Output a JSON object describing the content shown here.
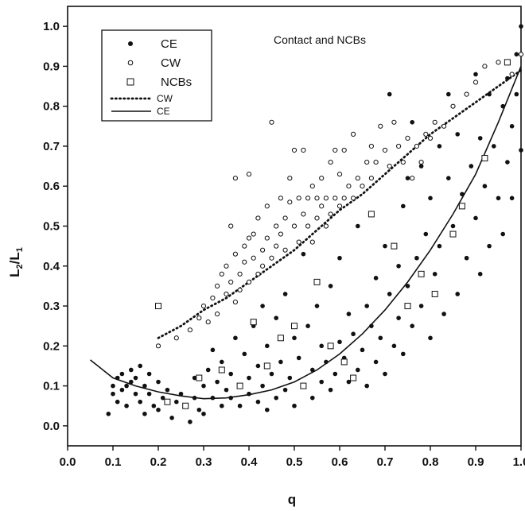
{
  "chart_data": {
    "type": "scatter",
    "title": "",
    "annotation": "Contact and NCBs",
    "xlabel": "q",
    "ylabel_main": "L",
    "ylabel_sub1": "2",
    "ylabel_slash": "/L",
    "ylabel_sub2": "1",
    "xlim": [
      0.0,
      1.0
    ],
    "ylim": [
      -0.05,
      1.05
    ],
    "xticks": [
      0.0,
      0.1,
      0.2,
      0.3,
      0.4,
      0.5,
      0.6,
      0.7,
      0.8,
      0.9,
      1.0
    ],
    "yticks": [
      0.0,
      0.1,
      0.2,
      0.3,
      0.4,
      0.5,
      0.6,
      0.7,
      0.8,
      0.9,
      1.0
    ],
    "xtick_labels": [
      "0.0",
      "0.1",
      "0.2",
      "0.3",
      "0.4",
      "0.5",
      "0.6",
      "0.7",
      "0.8",
      "0.9",
      "1.0"
    ],
    "ytick_labels": [
      "0.0",
      "0.1",
      "0.2",
      "0.3",
      "0.4",
      "0.5",
      "0.6",
      "0.7",
      "0.8",
      "0.9",
      "1.0"
    ],
    "grid": false,
    "legend_position": "top-left",
    "legend": [
      {
        "label": "CE",
        "marker": "filled-circle"
      },
      {
        "label": "CW",
        "marker": "open-circle"
      },
      {
        "label": "NCBs",
        "marker": "open-square"
      },
      {
        "label": "CW",
        "marker": "dotted-line"
      },
      {
        "label": "CE",
        "marker": "solid-line"
      }
    ],
    "series": [
      {
        "name": "CE",
        "marker": "filled-circle",
        "points": [
          [
            0.09,
            0.03
          ],
          [
            0.1,
            0.1
          ],
          [
            0.1,
            0.08
          ],
          [
            0.11,
            0.12
          ],
          [
            0.11,
            0.06
          ],
          [
            0.12,
            0.13
          ],
          [
            0.12,
            0.09
          ],
          [
            0.13,
            0.1
          ],
          [
            0.13,
            0.05
          ],
          [
            0.14,
            0.14
          ],
          [
            0.14,
            0.11
          ],
          [
            0.15,
            0.08
          ],
          [
            0.15,
            0.12
          ],
          [
            0.16,
            0.15
          ],
          [
            0.16,
            0.06
          ],
          [
            0.17,
            0.1
          ],
          [
            0.17,
            0.03
          ],
          [
            0.18,
            0.13
          ],
          [
            0.18,
            0.08
          ],
          [
            0.19,
            0.05
          ],
          [
            0.2,
            0.11
          ],
          [
            0.2,
            0.04
          ],
          [
            0.21,
            0.07
          ],
          [
            0.22,
            0.09
          ],
          [
            0.23,
            0.02
          ],
          [
            0.24,
            0.06
          ],
          [
            0.25,
            0.08
          ],
          [
            0.26,
            0.05
          ],
          [
            0.27,
            0.01
          ],
          [
            0.28,
            0.07
          ],
          [
            0.28,
            0.12
          ],
          [
            0.29,
            0.04
          ],
          [
            0.3,
            0.1
          ],
          [
            0.3,
            0.03
          ],
          [
            0.31,
            0.14
          ],
          [
            0.32,
            0.07
          ],
          [
            0.32,
            0.19
          ],
          [
            0.33,
            0.11
          ],
          [
            0.34,
            0.05
          ],
          [
            0.34,
            0.16
          ],
          [
            0.35,
            0.09
          ],
          [
            0.36,
            0.13
          ],
          [
            0.36,
            0.07
          ],
          [
            0.37,
            0.22
          ],
          [
            0.38,
            0.1
          ],
          [
            0.38,
            0.05
          ],
          [
            0.39,
            0.18
          ],
          [
            0.4,
            0.12
          ],
          [
            0.4,
            0.08
          ],
          [
            0.41,
            0.25
          ],
          [
            0.42,
            0.06
          ],
          [
            0.42,
            0.15
          ],
          [
            0.43,
            0.1
          ],
          [
            0.43,
            0.3
          ],
          [
            0.44,
            0.04
          ],
          [
            0.44,
            0.2
          ],
          [
            0.45,
            0.13
          ],
          [
            0.46,
            0.07
          ],
          [
            0.46,
            0.27
          ],
          [
            0.47,
            0.16
          ],
          [
            0.48,
            0.09
          ],
          [
            0.48,
            0.33
          ],
          [
            0.49,
            0.12
          ],
          [
            0.5,
            0.05
          ],
          [
            0.5,
            0.22
          ],
          [
            0.51,
            0.17
          ],
          [
            0.52,
            0.1
          ],
          [
            0.52,
            0.43
          ],
          [
            0.53,
            0.25
          ],
          [
            0.54,
            0.14
          ],
          [
            0.54,
            0.07
          ],
          [
            0.55,
            0.3
          ],
          [
            0.56,
            0.11
          ],
          [
            0.56,
            0.2
          ],
          [
            0.57,
            0.16
          ],
          [
            0.58,
            0.09
          ],
          [
            0.58,
            0.35
          ],
          [
            0.59,
            0.13
          ],
          [
            0.6,
            0.21
          ],
          [
            0.6,
            0.42
          ],
          [
            0.61,
            0.17
          ],
          [
            0.62,
            0.11
          ],
          [
            0.62,
            0.28
          ],
          [
            0.63,
            0.23
          ],
          [
            0.64,
            0.14
          ],
          [
            0.64,
            0.5
          ],
          [
            0.65,
            0.19
          ],
          [
            0.66,
            0.3
          ],
          [
            0.66,
            0.1
          ],
          [
            0.67,
            0.25
          ],
          [
            0.68,
            0.37
          ],
          [
            0.68,
            0.16
          ],
          [
            0.69,
            0.22
          ],
          [
            0.7,
            0.45
          ],
          [
            0.7,
            0.13
          ],
          [
            0.71,
            0.33
          ],
          [
            0.71,
            0.83
          ],
          [
            0.72,
            0.2
          ],
          [
            0.73,
            0.4
          ],
          [
            0.73,
            0.27
          ],
          [
            0.74,
            0.18
          ],
          [
            0.74,
            0.55
          ],
          [
            0.75,
            0.35
          ],
          [
            0.75,
            0.62
          ],
          [
            0.76,
            0.25
          ],
          [
            0.76,
            0.76
          ],
          [
            0.77,
            0.42
          ],
          [
            0.78,
            0.3
          ],
          [
            0.78,
            0.65
          ],
          [
            0.79,
            0.48
          ],
          [
            0.8,
            0.22
          ],
          [
            0.8,
            0.57
          ],
          [
            0.81,
            0.38
          ],
          [
            0.82,
            0.7
          ],
          [
            0.82,
            0.45
          ],
          [
            0.83,
            0.28
          ],
          [
            0.84,
            0.62
          ],
          [
            0.84,
            0.83
          ],
          [
            0.85,
            0.5
          ],
          [
            0.86,
            0.33
          ],
          [
            0.86,
            0.73
          ],
          [
            0.87,
            0.58
          ],
          [
            0.88,
            0.42
          ],
          [
            0.88,
            0.83
          ],
          [
            0.89,
            0.65
          ],
          [
            0.9,
            0.52
          ],
          [
            0.9,
            0.88
          ],
          [
            0.91,
            0.38
          ],
          [
            0.91,
            0.72
          ],
          [
            0.92,
            0.6
          ],
          [
            0.93,
            0.83
          ],
          [
            0.93,
            0.45
          ],
          [
            0.94,
            0.7
          ],
          [
            0.95,
            0.57
          ],
          [
            0.95,
            0.91
          ],
          [
            0.96,
            0.8
          ],
          [
            0.96,
            0.48
          ],
          [
            0.97,
            0.66
          ],
          [
            0.97,
            0.87
          ],
          [
            0.98,
            0.75
          ],
          [
            0.98,
            0.57
          ],
          [
            0.99,
            0.83
          ],
          [
            0.99,
            0.93
          ],
          [
            1.0,
            0.69
          ],
          [
            1.0,
            1.0
          ]
        ]
      },
      {
        "name": "CW",
        "marker": "open-circle",
        "points": [
          [
            0.2,
            0.2
          ],
          [
            0.24,
            0.22
          ],
          [
            0.27,
            0.24
          ],
          [
            0.29,
            0.27
          ],
          [
            0.3,
            0.3
          ],
          [
            0.31,
            0.26
          ],
          [
            0.32,
            0.32
          ],
          [
            0.33,
            0.35
          ],
          [
            0.33,
            0.28
          ],
          [
            0.34,
            0.38
          ],
          [
            0.35,
            0.33
          ],
          [
            0.35,
            0.4
          ],
          [
            0.36,
            0.36
          ],
          [
            0.36,
            0.5
          ],
          [
            0.37,
            0.31
          ],
          [
            0.37,
            0.43
          ],
          [
            0.37,
            0.62
          ],
          [
            0.38,
            0.38
          ],
          [
            0.38,
            0.34
          ],
          [
            0.39,
            0.41
          ],
          [
            0.39,
            0.45
          ],
          [
            0.4,
            0.47
          ],
          [
            0.4,
            0.36
          ],
          [
            0.4,
            0.63
          ],
          [
            0.41,
            0.42
          ],
          [
            0.41,
            0.48
          ],
          [
            0.42,
            0.38
          ],
          [
            0.42,
            0.52
          ],
          [
            0.43,
            0.44
          ],
          [
            0.43,
            0.4
          ],
          [
            0.44,
            0.47
          ],
          [
            0.44,
            0.55
          ],
          [
            0.45,
            0.42
          ],
          [
            0.45,
            0.76
          ],
          [
            0.46,
            0.5
          ],
          [
            0.46,
            0.45
          ],
          [
            0.47,
            0.57
          ],
          [
            0.47,
            0.48
          ],
          [
            0.48,
            0.52
          ],
          [
            0.48,
            0.44
          ],
          [
            0.49,
            0.56
          ],
          [
            0.49,
            0.62
          ],
          [
            0.5,
            0.5
          ],
          [
            0.5,
            0.69
          ],
          [
            0.51,
            0.46
          ],
          [
            0.51,
            0.57
          ],
          [
            0.52,
            0.53
          ],
          [
            0.52,
            0.69
          ],
          [
            0.53,
            0.57
          ],
          [
            0.53,
            0.5
          ],
          [
            0.54,
            0.6
          ],
          [
            0.54,
            0.46
          ],
          [
            0.55,
            0.57
          ],
          [
            0.55,
            0.52
          ],
          [
            0.56,
            0.55
          ],
          [
            0.56,
            0.62
          ],
          [
            0.57,
            0.5
          ],
          [
            0.57,
            0.57
          ],
          [
            0.58,
            0.53
          ],
          [
            0.58,
            0.66
          ],
          [
            0.59,
            0.57
          ],
          [
            0.59,
            0.69
          ],
          [
            0.6,
            0.55
          ],
          [
            0.6,
            0.63
          ],
          [
            0.61,
            0.57
          ],
          [
            0.61,
            0.69
          ],
          [
            0.62,
            0.6
          ],
          [
            0.63,
            0.57
          ],
          [
            0.63,
            0.73
          ],
          [
            0.64,
            0.62
          ],
          [
            0.65,
            0.6
          ],
          [
            0.66,
            0.66
          ],
          [
            0.67,
            0.62
          ],
          [
            0.67,
            0.7
          ],
          [
            0.68,
            0.66
          ],
          [
            0.69,
            0.75
          ],
          [
            0.7,
            0.69
          ],
          [
            0.71,
            0.65
          ],
          [
            0.72,
            0.76
          ],
          [
            0.73,
            0.7
          ],
          [
            0.74,
            0.66
          ],
          [
            0.75,
            0.72
          ],
          [
            0.76,
            0.62
          ],
          [
            0.77,
            0.7
          ],
          [
            0.78,
            0.66
          ],
          [
            0.79,
            0.73
          ],
          [
            0.8,
            0.72
          ],
          [
            0.81,
            0.76
          ],
          [
            0.83,
            0.75
          ],
          [
            0.85,
            0.8
          ],
          [
            0.88,
            0.83
          ],
          [
            0.9,
            0.86
          ],
          [
            0.92,
            0.9
          ],
          [
            0.95,
            0.91
          ],
          [
            0.98,
            0.88
          ],
          [
            1.0,
            0.93
          ]
        ]
      },
      {
        "name": "NCBs",
        "marker": "open-square",
        "points": [
          [
            0.2,
            0.3
          ],
          [
            0.22,
            0.06
          ],
          [
            0.26,
            0.05
          ],
          [
            0.29,
            0.12
          ],
          [
            0.34,
            0.14
          ],
          [
            0.38,
            0.1
          ],
          [
            0.41,
            0.26
          ],
          [
            0.44,
            0.15
          ],
          [
            0.47,
            0.22
          ],
          [
            0.5,
            0.25
          ],
          [
            0.52,
            0.1
          ],
          [
            0.55,
            0.36
          ],
          [
            0.58,
            0.2
          ],
          [
            0.61,
            0.16
          ],
          [
            0.63,
            0.12
          ],
          [
            0.67,
            0.53
          ],
          [
            0.72,
            0.45
          ],
          [
            0.75,
            0.3
          ],
          [
            0.78,
            0.38
          ],
          [
            0.81,
            0.33
          ],
          [
            0.85,
            0.48
          ],
          [
            0.87,
            0.55
          ],
          [
            0.92,
            0.67
          ],
          [
            0.97,
            0.91
          ]
        ]
      }
    ],
    "curves": [
      {
        "name": "CW",
        "style": "dotted",
        "x": [
          0.2,
          0.25,
          0.3,
          0.35,
          0.4,
          0.45,
          0.5,
          0.55,
          0.6,
          0.65,
          0.7,
          0.75,
          0.8,
          0.85,
          0.9,
          0.95,
          1.0
        ],
        "y": [
          0.22,
          0.25,
          0.29,
          0.32,
          0.36,
          0.4,
          0.44,
          0.49,
          0.54,
          0.58,
          0.63,
          0.68,
          0.73,
          0.77,
          0.81,
          0.85,
          0.89
        ]
      },
      {
        "name": "CE",
        "style": "solid",
        "x": [
          0.05,
          0.1,
          0.15,
          0.2,
          0.25,
          0.3,
          0.35,
          0.4,
          0.45,
          0.5,
          0.55,
          0.6,
          0.65,
          0.7,
          0.75,
          0.8,
          0.85,
          0.9,
          0.95,
          1.0
        ],
        "y": [
          0.165,
          0.12,
          0.1,
          0.085,
          0.075,
          0.068,
          0.07,
          0.078,
          0.09,
          0.11,
          0.14,
          0.18,
          0.23,
          0.29,
          0.36,
          0.44,
          0.53,
          0.63,
          0.76,
          0.9
        ]
      }
    ]
  }
}
